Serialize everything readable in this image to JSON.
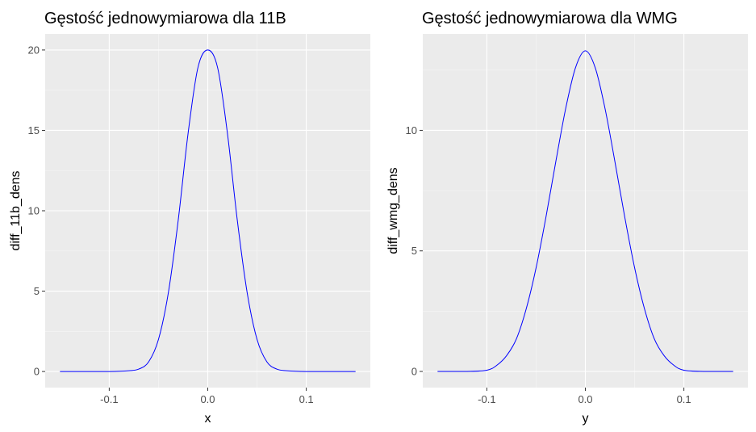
{
  "chart_data": [
    {
      "type": "line",
      "title": "Gęstość jednowymiarowa dla 11B",
      "xlabel": "x",
      "ylabel": "diff_11b_dens",
      "xlim": [
        -0.165,
        0.165
      ],
      "ylim": [
        -1.0,
        21.0
      ],
      "x_ticks": [
        -0.1,
        0.0,
        0.1
      ],
      "x_tick_labels": [
        "-0.1",
        "0.0",
        "0.1"
      ],
      "y_ticks": [
        0,
        5,
        10,
        15,
        20
      ],
      "y_tick_labels": [
        "0",
        "5",
        "10",
        "15",
        "20"
      ],
      "grid": true,
      "line_color": "#0000ff",
      "panel_color": "#ebebeb",
      "series": [
        {
          "x": [
            -0.15,
            -0.1,
            -0.08,
            -0.07,
            -0.06,
            -0.05,
            -0.04,
            -0.03,
            -0.02,
            -0.01,
            0.0,
            0.01,
            0.02,
            0.03,
            0.04,
            0.05,
            0.06,
            0.07,
            0.08,
            0.1,
            0.15
          ],
          "y": [
            0,
            0,
            0.05,
            0.15,
            0.6,
            2.0,
            4.9,
            9.4,
            14.8,
            18.9,
            20.0,
            18.9,
            14.8,
            9.4,
            4.9,
            2.0,
            0.6,
            0.15,
            0.05,
            0,
            0
          ]
        }
      ]
    },
    {
      "type": "line",
      "title": "Gęstość jednowymiarowa dla WMG",
      "xlabel": "y",
      "ylabel": "diff_wmg_dens",
      "xlim": [
        -0.165,
        0.165
      ],
      "ylim": [
        -0.67,
        14.0
      ],
      "x_ticks": [
        -0.1,
        0.0,
        0.1
      ],
      "x_tick_labels": [
        "-0.1",
        "0.0",
        "0.1"
      ],
      "y_ticks": [
        0,
        5,
        10
      ],
      "y_tick_labels": [
        "0",
        "5",
        "10"
      ],
      "grid": true,
      "line_color": "#0000ff",
      "panel_color": "#ebebeb",
      "series": [
        {
          "x": [
            -0.15,
            -0.12,
            -0.1,
            -0.09,
            -0.08,
            -0.07,
            -0.06,
            -0.05,
            -0.04,
            -0.03,
            -0.02,
            -0.01,
            0.0,
            0.01,
            0.02,
            0.03,
            0.04,
            0.05,
            0.06,
            0.07,
            0.08,
            0.09,
            0.1,
            0.12,
            0.15
          ],
          "y": [
            0,
            0,
            0.05,
            0.25,
            0.65,
            1.35,
            2.6,
            4.3,
            6.4,
            8.7,
            10.9,
            12.6,
            13.3,
            12.6,
            10.9,
            8.7,
            6.4,
            4.3,
            2.6,
            1.35,
            0.65,
            0.25,
            0.05,
            0,
            0
          ]
        }
      ]
    }
  ]
}
